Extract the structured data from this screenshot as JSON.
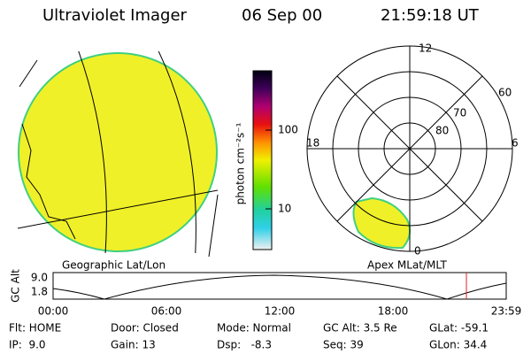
{
  "header": {
    "title": "Ultraviolet Imager",
    "date": "06 Sep 00",
    "time": "21:59:18 UT"
  },
  "colorbar": {
    "label": "photon cm⁻²s⁻¹",
    "ticks": [
      "100",
      "10"
    ]
  },
  "polar": {
    "mlt_labels": [
      "12",
      "18",
      "6",
      "0"
    ],
    "mlat_labels": [
      "60",
      "70",
      "80"
    ]
  },
  "panel_labels": {
    "left": "Geographic Lat/Lon",
    "right": "Apex MLat/MLT"
  },
  "altitude": {
    "axis_label": "GC Alt",
    "y_labels": [
      "9.0",
      "1.8"
    ],
    "x_labels": [
      "00:00",
      "06:00",
      "12:00",
      "18:00",
      "23:59"
    ]
  },
  "status": {
    "rows": [
      [
        "Flt: HOME",
        "Door: Closed",
        "Mode: Normal",
        "GC Alt: 3.5 Re",
        "GLat: -59.1"
      ],
      [
        "IP:  9.0",
        "Gain: 13",
        "Dsp:   -8.3",
        "Seq: 39",
        "GLon: 34.4"
      ]
    ]
  }
}
